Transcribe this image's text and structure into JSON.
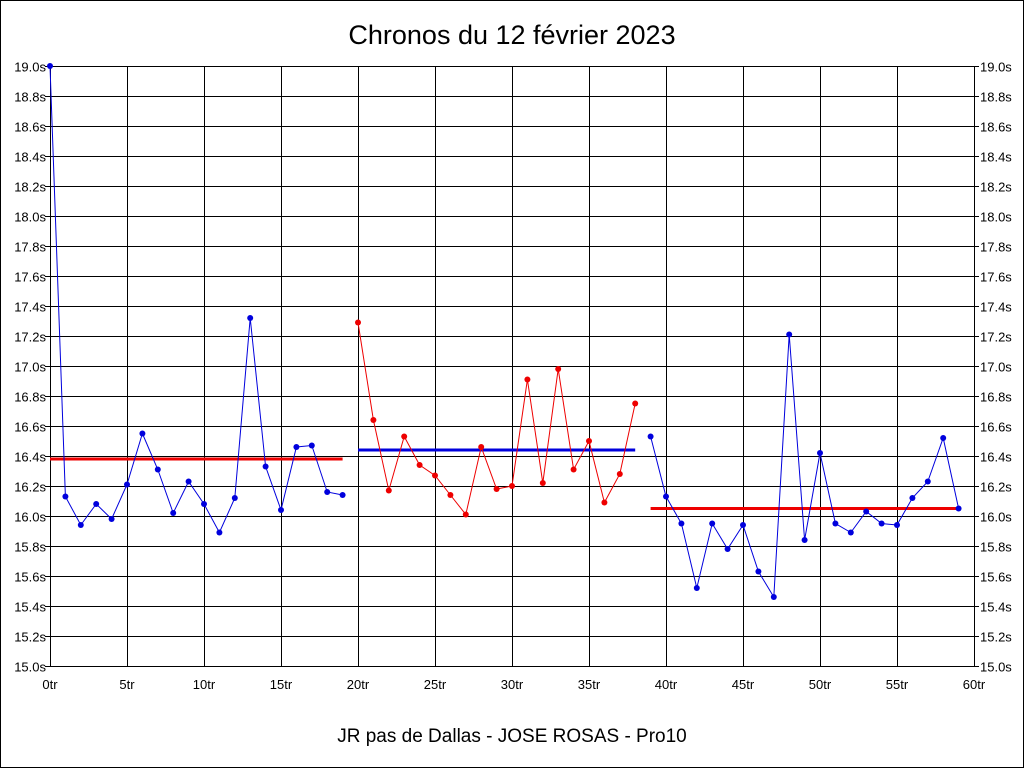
{
  "title": "Chronos du 12 février 2023",
  "footer": "JR pas de Dallas - JOSE ROSAS - Pro10",
  "colors": {
    "blue": "#0000dd",
    "red": "#ee0000",
    "grid": "#000000",
    "background": "#ffffff"
  },
  "chart_data": {
    "type": "line",
    "title": "Chronos du 12 février 2023",
    "xlabel": "",
    "ylabel": "",
    "xlim": [
      0,
      60
    ],
    "ylim": [
      15.0,
      19.0
    ],
    "grid": true,
    "x_ticks": [
      0,
      5,
      10,
      15,
      20,
      25,
      30,
      35,
      40,
      45,
      50,
      55,
      60
    ],
    "x_tick_labels": [
      "0tr",
      "5tr",
      "10tr",
      "15tr",
      "20tr",
      "25tr",
      "30tr",
      "35tr",
      "40tr",
      "45tr",
      "50tr",
      "55tr",
      "60tr"
    ],
    "y_ticks": [
      15.0,
      15.2,
      15.4,
      15.6,
      15.8,
      16.0,
      16.2,
      16.4,
      16.6,
      16.8,
      17.0,
      17.2,
      17.4,
      17.6,
      17.8,
      18.0,
      18.2,
      18.4,
      18.6,
      18.8,
      19.0
    ],
    "y_tick_labels": [
      "15.0s",
      "15.2s",
      "15.4s",
      "15.6s",
      "15.8s",
      "16.0s",
      "16.2s",
      "16.4s",
      "16.6s",
      "16.8s",
      "17.0s",
      "17.2s",
      "17.4s",
      "17.6s",
      "17.8s",
      "18.0s",
      "18.2s",
      "18.4s",
      "18.6s",
      "18.8s",
      "19.0s"
    ],
    "series": [
      {
        "color": "#0000dd",
        "x": [
          0,
          1,
          2,
          3,
          4,
          5,
          6,
          7,
          8,
          9,
          10,
          11,
          12,
          13,
          14,
          15,
          16,
          17,
          18,
          19
        ],
        "values": [
          19.0,
          16.13,
          15.94,
          16.08,
          15.98,
          16.21,
          16.55,
          16.31,
          16.02,
          16.23,
          16.08,
          15.89,
          16.12,
          17.32,
          16.33,
          16.04,
          16.46,
          16.47,
          16.16,
          16.14
        ]
      },
      {
        "color": "#ee0000",
        "x": [
          20,
          21,
          22,
          23,
          24,
          25,
          26,
          27,
          28,
          29,
          30,
          31,
          32,
          33,
          34,
          35,
          36,
          37,
          38
        ],
        "values": [
          17.29,
          16.64,
          16.17,
          16.53,
          16.34,
          16.27,
          16.14,
          16.01,
          16.46,
          16.18,
          16.2,
          16.91,
          16.22,
          16.98,
          16.31,
          16.5,
          16.09,
          16.28,
          16.75
        ]
      },
      {
        "color": "#0000dd",
        "x": [
          39,
          40,
          41,
          42,
          43,
          44,
          45,
          46,
          47,
          48,
          49,
          50,
          51,
          52,
          53,
          54,
          55,
          56,
          57,
          58,
          59
        ],
        "values": [
          16.53,
          16.13,
          15.95,
          15.52,
          15.95,
          15.78,
          15.94,
          15.63,
          15.46,
          17.21,
          15.84,
          16.42,
          15.95,
          15.89,
          16.03,
          15.95,
          15.94,
          16.12,
          16.23,
          16.52,
          16.05
        ]
      }
    ],
    "averages": [
      {
        "color": "#ee0000",
        "x_start": 0,
        "x_end": 19,
        "value": 16.38
      },
      {
        "color": "#0000dd",
        "x_start": 20,
        "x_end": 38,
        "value": 16.44
      },
      {
        "color": "#ee0000",
        "x_start": 39,
        "x_end": 59,
        "value": 16.05
      }
    ]
  }
}
